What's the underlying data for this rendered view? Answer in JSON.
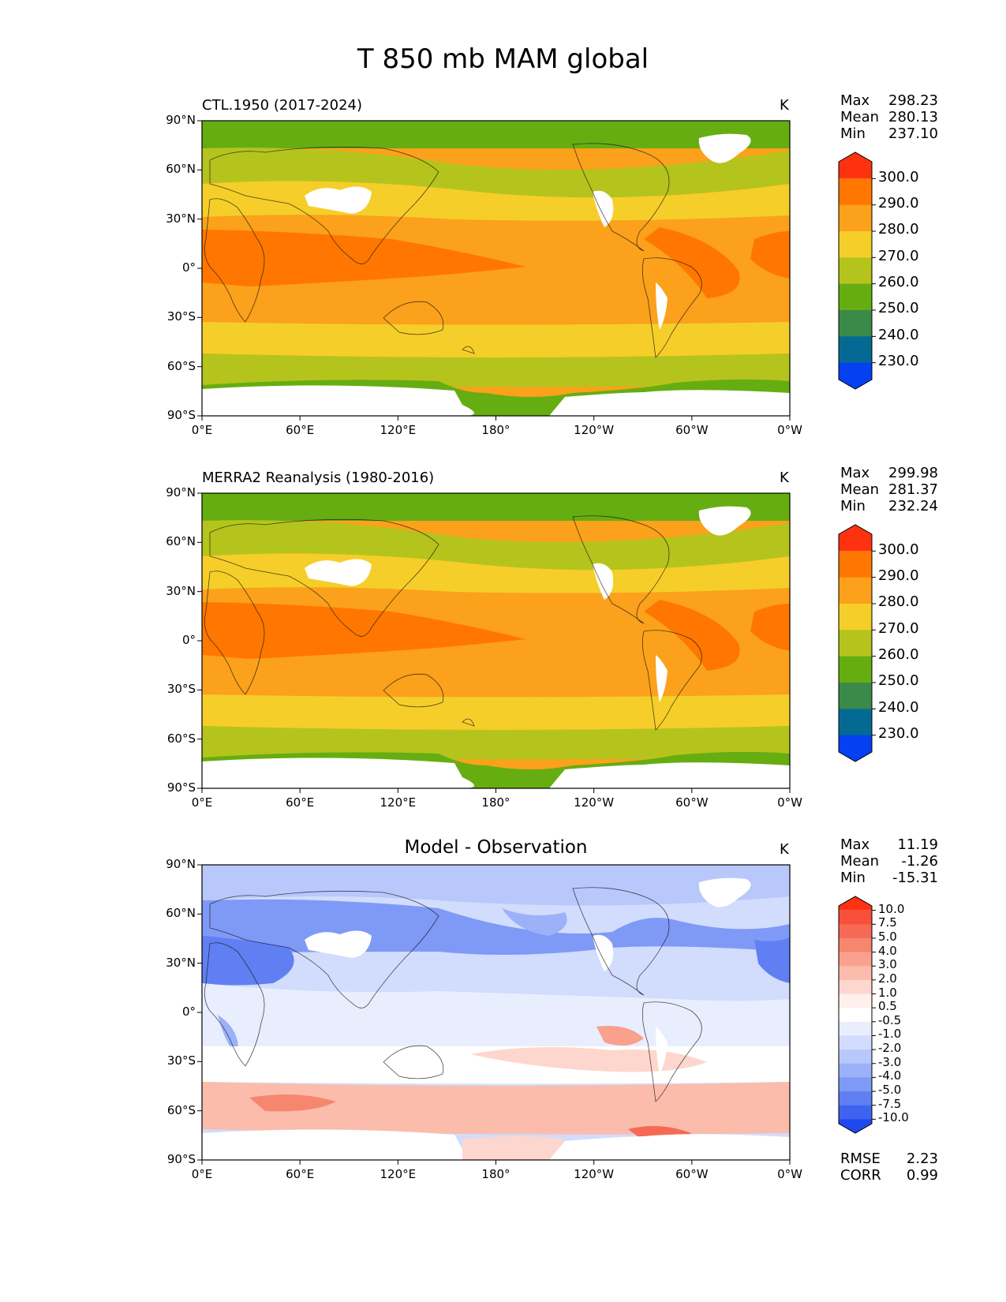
{
  "figure": {
    "title": "T 850 mb MAM global"
  },
  "axes": {
    "lat_ticks": [
      "90°N",
      "60°N",
      "30°N",
      "0°",
      "30°S",
      "60°S",
      "90°S"
    ],
    "lon_ticks": [
      "0°E",
      "60°E",
      "120°E",
      "180°",
      "120°W",
      "60°W",
      "0°W"
    ]
  },
  "panels": [
    {
      "title": "CTL.1950 (2017-2024)",
      "units": "K",
      "stats": [
        {
          "label": "Max",
          "value": "298.23"
        },
        {
          "label": "Mean",
          "value": "280.13"
        },
        {
          "label": "Min",
          "value": "237.10"
        }
      ],
      "colorbar": {
        "labels": [
          "300.0",
          "290.0",
          "280.0",
          "270.0",
          "260.0",
          "250.0",
          "240.0",
          "230.0"
        ],
        "colors": [
          "#ff3210",
          "#ff7700",
          "#fba11b",
          "#f5ce2a",
          "#b5c41c",
          "#66ad12",
          "#3b8a4a",
          "#046a94",
          "#0540f2"
        ]
      },
      "metrics": []
    },
    {
      "title": "MERRA2 Reanalysis (1980-2016)",
      "units": "K",
      "stats": [
        {
          "label": "Max",
          "value": "299.98"
        },
        {
          "label": "Mean",
          "value": "281.37"
        },
        {
          "label": "Min",
          "value": "232.24"
        }
      ],
      "colorbar": {
        "labels": [
          "300.0",
          "290.0",
          "280.0",
          "270.0",
          "260.0",
          "250.0",
          "240.0",
          "230.0"
        ],
        "colors": [
          "#ff3210",
          "#ff7700",
          "#fba11b",
          "#f5ce2a",
          "#b5c41c",
          "#66ad12",
          "#3b8a4a",
          "#046a94",
          "#0540f2"
        ]
      },
      "metrics": []
    },
    {
      "title": "Model - Observation",
      "units": "K",
      "stats": [
        {
          "label": "Max",
          "value": "11.19"
        },
        {
          "label": "Mean",
          "value": "-1.26"
        },
        {
          "label": "Min",
          "value": "-15.31"
        }
      ],
      "colorbar": {
        "labels": [
          "10.0",
          "7.5",
          "5.0",
          "4.0",
          "3.0",
          "2.0",
          "1.0",
          "0.5",
          "-0.5",
          "-1.0",
          "-2.0",
          "-3.0",
          "-4.0",
          "-5.0",
          "-7.5",
          "-10.0"
        ],
        "colors": [
          "#ff3214",
          "#f8503a",
          "#f66a55",
          "#f7866f",
          "#f9a18c",
          "#fbbcab",
          "#fdd7cd",
          "#fff0ec",
          "#ffffff",
          "#e9eefe",
          "#d2dcfc",
          "#b8c8fb",
          "#9db1f8",
          "#7f99f6",
          "#607ff3",
          "#3f63f1",
          "#1f48ef"
        ]
      },
      "metrics": [
        {
          "label": "RMSE",
          "value": "2.23"
        },
        {
          "label": "CORR",
          "value": "0.99"
        }
      ]
    }
  ]
}
